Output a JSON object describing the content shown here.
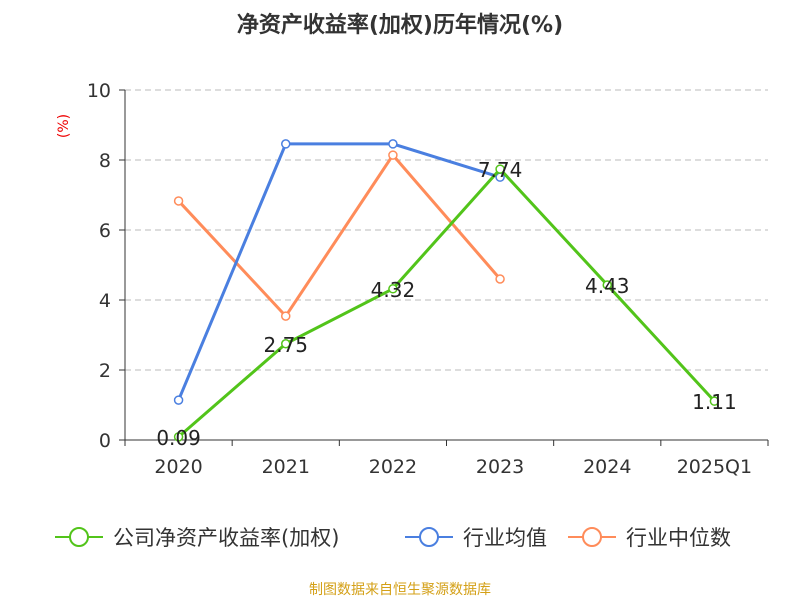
{
  "chart_data": {
    "type": "line",
    "title": "净资产收益率(加权)历年情况(%)",
    "ylabel": "(%)",
    "xlabel": "",
    "categories": [
      "2020",
      "2021",
      "2022",
      "2023",
      "2024",
      "2025Q1"
    ],
    "ylim": [
      0,
      10
    ],
    "yticks": [
      "0",
      "2",
      "4",
      "6",
      "8",
      "10"
    ],
    "grid": true,
    "legend_position": "bottom",
    "series": [
      {
        "name": "公司净资产收益率(加权)",
        "color": "#52c41a",
        "values": [
          0.09,
          2.75,
          4.32,
          7.74,
          4.43,
          1.11
        ],
        "labels": [
          "0.09",
          "2.75",
          "4.32",
          "7.74",
          "4.43",
          "1.11"
        ]
      },
      {
        "name": "行业均值",
        "color": "#4a7fe0",
        "values": [
          1.14,
          8.46,
          8.46,
          7.51,
          null,
          null
        ]
      },
      {
        "name": "行业中位数",
        "color": "#ff8c5a",
        "values": [
          6.83,
          3.54,
          8.14,
          4.6,
          null,
          null
        ]
      }
    ]
  },
  "source": "制图数据来自恒生聚源数据库"
}
